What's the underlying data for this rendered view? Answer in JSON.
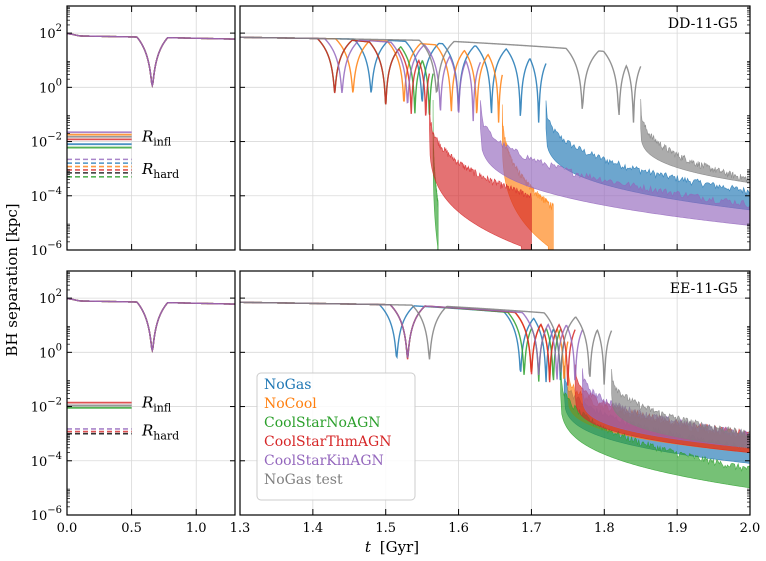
{
  "chart_data": {
    "type": "line",
    "ylabel": "BH separation [kpc]",
    "xlabel_main": "t",
    "xlabel_unit": "[Gyr]",
    "yscale": "log",
    "ylim": [
      1e-06,
      1000
    ],
    "y_ticks": [
      {
        "value": 100,
        "base": "10",
        "exp": "2"
      },
      {
        "value": 1,
        "base": "10",
        "exp": "0"
      },
      {
        "value": 0.01,
        "base": "10",
        "exp": "−2"
      },
      {
        "value": 0.0001,
        "base": "10",
        "exp": "−4"
      },
      {
        "value": 1e-06,
        "base": "10",
        "exp": "−6"
      }
    ],
    "left_xlim": [
      0.0,
      1.3
    ],
    "left_x_ticks": [
      "0.0",
      "0.5",
      "1.0"
    ],
    "right_xlim": [
      1.3,
      2.0
    ],
    "right_x_ticks": [
      "1.3",
      "1.4",
      "1.5",
      "1.6",
      "1.7",
      "1.8",
      "1.9",
      "2.0"
    ],
    "legend": [
      {
        "name": "NoGas",
        "color": "#1f77b4"
      },
      {
        "name": "NoCool",
        "color": "#ff7f0e"
      },
      {
        "name": "CoolStarNoAGN",
        "color": "#2ca02c"
      },
      {
        "name": "CoolStarThmAGN",
        "color": "#d62728"
      },
      {
        "name": "CoolStarKinAGN",
        "color": "#9467bd"
      },
      {
        "name": "NoGas test",
        "color": "#7f7f7f"
      }
    ],
    "panels": [
      {
        "title": "DD-11-G5",
        "r_infl_label": "infl",
        "r_hard_label": "hard",
        "r_infl": [
          0.022,
          0.018,
          0.015,
          0.012,
          0.008,
          0.006
        ],
        "r_infl_colors": [
          "#9467bd",
          "#ff7f0e",
          "#7f7f7f",
          "#d62728",
          "#1f77b4",
          "#2ca02c"
        ],
        "r_hard": [
          0.0022,
          0.0016,
          0.0012,
          0.0009,
          0.0007,
          0.0005
        ],
        "r_hard_colors": [
          "#9467bd",
          "#1f77b4",
          "#ff7f0e",
          "#d62728",
          "#000000",
          "#2ca02c"
        ],
        "series": [
          {
            "name": "NoGas",
            "color": "#1f77b4",
            "dip_times": [
              1.48,
              1.55,
              1.6,
              1.645,
              1.685,
              1.71
            ],
            "merge_time": 1.72,
            "final": 0.00015,
            "final_low": 3e-05
          },
          {
            "name": "NoCool",
            "color": "#ff7f0e",
            "dip_times": [
              1.455,
              1.525,
              1.59,
              1.625,
              1.655
            ],
            "merge_time": 1.66,
            "final": 4e-05,
            "final_low": 1e-06,
            "coalesce": 1.73
          },
          {
            "name": "CoolStarNoAGN",
            "color": "#2ca02c",
            "dip_times": [
              1.43,
              1.5,
              1.54,
              1.56
            ],
            "merge_time": 1.565,
            "final": 5e-05,
            "final_low": 1e-06,
            "coalesce": 1.572
          },
          {
            "name": "CoolStarThmAGN",
            "color": "#d62728",
            "dip_times": [
              1.43,
              1.5,
              1.535,
              1.555
            ],
            "merge_time": 1.56,
            "final": 0.0001,
            "final_low": 1e-06,
            "coalesce": 1.7
          },
          {
            "name": "CoolStarKinAGN",
            "color": "#9467bd",
            "dip_times": [
              1.44,
              1.53,
              1.575,
              1.6,
              1.62
            ],
            "merge_time": 1.63,
            "final": 5e-05,
            "final_low": 8e-06
          },
          {
            "name": "NoGas test",
            "color": "#7f7f7f",
            "dip_times": [
              1.57,
              1.77,
              1.82,
              1.84
            ],
            "merge_time": 1.85,
            "final": 0.0004,
            "final_low": 0.0003
          }
        ]
      },
      {
        "title": "EE-11-G5",
        "r_infl_label": "infl",
        "r_hard_label": "hard",
        "r_infl": [
          0.014,
          0.011,
          0.009
        ],
        "r_infl_colors": [
          "#d62728",
          "#7f7f7f",
          "#2ca02c"
        ],
        "r_hard": [
          0.0015,
          0.0012,
          0.001
        ],
        "r_hard_colors": [
          "#9467bd",
          "#d62728",
          "#000000"
        ],
        "series": [
          {
            "name": "NoGas",
            "color": "#1f77b4",
            "dip_times": [
              1.515,
              1.685,
              1.72,
              1.74
            ],
            "merge_time": 1.745,
            "final": 0.0003,
            "final_low": 8e-05
          },
          {
            "name": "NoCool",
            "color": "#ff7f0e",
            "dip_times": [
              1.53,
              1.7,
              1.725,
              1.745
            ],
            "merge_time": 1.75,
            "final": 0.0008,
            "final_low": 0.0002
          },
          {
            "name": "CoolStarNoAGN",
            "color": "#2ca02c",
            "dip_times": [
              1.53,
              1.69,
              1.71,
              1.73
            ],
            "merge_time": 1.74,
            "final": 5e-05,
            "final_low": 1e-05
          },
          {
            "name": "CoolStarThmAGN",
            "color": "#d62728",
            "dip_times": [
              1.53,
              1.7,
              1.725,
              1.75
            ],
            "merge_time": 1.76,
            "final": 0.001,
            "final_low": 0.0002
          },
          {
            "name": "CoolStarKinAGN",
            "color": "#9467bd",
            "dip_times": [
              1.53,
              1.71,
              1.735,
              1.76
            ],
            "merge_time": 1.77,
            "final": 0.001,
            "final_low": 0.0003
          },
          {
            "name": "NoGas test",
            "color": "#7f7f7f",
            "dip_times": [
              1.56,
              1.74,
              1.78,
              1.8
            ],
            "merge_time": 1.81,
            "final": 0.001,
            "final_low": 0.0003
          }
        ]
      }
    ],
    "first_dip_time": 0.66
  }
}
